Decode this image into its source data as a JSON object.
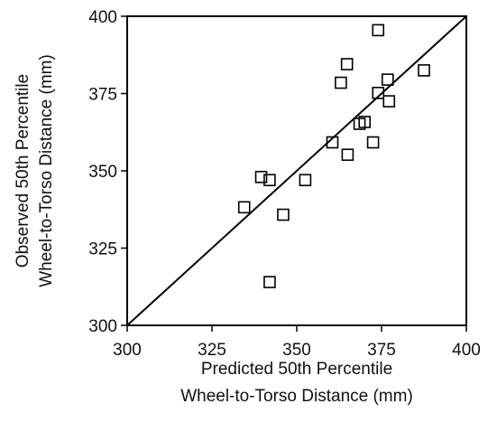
{
  "chart_data": {
    "type": "scatter",
    "title": "",
    "xlabel": [
      "Predicted 50th Percentile",
      "Wheel-to-Torso Distance (mm)"
    ],
    "ylabel": [
      "Observed 50th Percentile",
      "Wheel-to-Torso Distance (mm)"
    ],
    "xlim": [
      300,
      400
    ],
    "ylim": [
      300,
      400
    ],
    "xticks": [
      300,
      325,
      350,
      375,
      400
    ],
    "yticks": [
      300,
      325,
      350,
      375,
      400
    ],
    "grid": false,
    "marker": "open-square",
    "reference_line": {
      "type": "identity",
      "from": [
        300,
        300
      ],
      "to": [
        400,
        400
      ]
    },
    "points": [
      {
        "x": 334.5,
        "y": 338.2
      },
      {
        "x": 339.5,
        "y": 348.0
      },
      {
        "x": 342.0,
        "y": 347.0
      },
      {
        "x": 342.0,
        "y": 314.0
      },
      {
        "x": 346.0,
        "y": 335.8
      },
      {
        "x": 352.5,
        "y": 347.0
      },
      {
        "x": 360.5,
        "y": 359.2
      },
      {
        "x": 363.0,
        "y": 378.5
      },
      {
        "x": 364.8,
        "y": 384.5
      },
      {
        "x": 365.0,
        "y": 355.2
      },
      {
        "x": 368.5,
        "y": 365.2
      },
      {
        "x": 370.0,
        "y": 365.8
      },
      {
        "x": 372.5,
        "y": 359.2
      },
      {
        "x": 374.0,
        "y": 395.5
      },
      {
        "x": 374.0,
        "y": 375.2
      },
      {
        "x": 376.8,
        "y": 379.5
      },
      {
        "x": 377.2,
        "y": 372.5
      },
      {
        "x": 387.5,
        "y": 382.5
      }
    ]
  }
}
